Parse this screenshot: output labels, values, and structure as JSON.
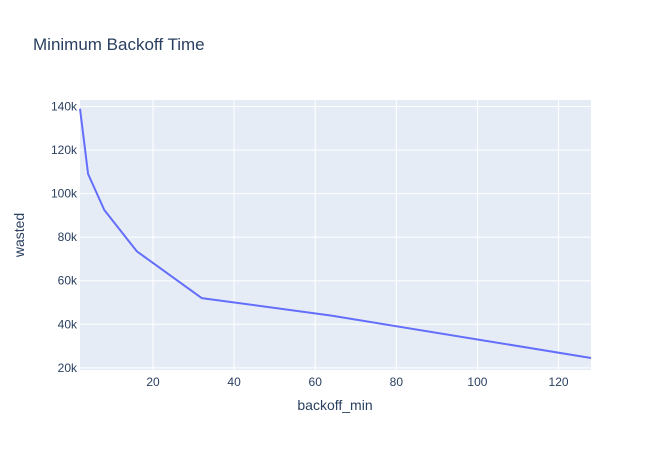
{
  "chart_data": {
    "type": "line",
    "title": "Minimum Backoff Time",
    "xlabel": "backoff_min",
    "ylabel": "wasted",
    "xlim": [
      2,
      128
    ],
    "ylim": [
      19000,
      143000
    ],
    "x_ticks": [
      20,
      40,
      60,
      80,
      100,
      120
    ],
    "y_ticks": [
      20000,
      40000,
      60000,
      80000,
      100000,
      120000,
      140000
    ],
    "y_tick_labels": [
      "20k",
      "40k",
      "60k",
      "80k",
      "100k",
      "120k",
      "140k"
    ],
    "grid": true,
    "legend": "none",
    "series": [
      {
        "x": [
          2,
          4,
          8,
          16,
          32,
          64,
          128
        ],
        "y": [
          139000,
          109000,
          92500,
          73500,
          52000,
          44000,
          24500
        ],
        "color": "#636efa"
      }
    ],
    "colors": {
      "plot_background": "#e5ecf6",
      "grid": "#ffffff",
      "text": "#2a3f5f",
      "line": "#636efa"
    }
  }
}
